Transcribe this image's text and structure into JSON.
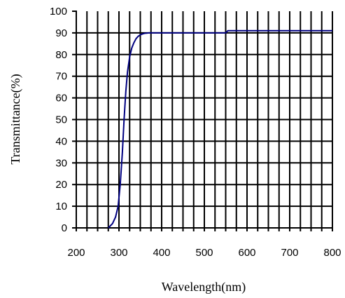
{
  "chart_data": {
    "type": "line",
    "title": "",
    "xlabel": "Wavelength(nm)",
    "ylabel": "Transmittance(%)",
    "xlim": [
      200,
      800
    ],
    "ylim": [
      0,
      100
    ],
    "xticks": [
      "200",
      "300",
      "400",
      "500",
      "600",
      "700",
      "800"
    ],
    "yticks": [
      "0",
      "10",
      "20",
      "30",
      "40",
      "50",
      "60",
      "70",
      "80",
      "90",
      "100"
    ],
    "grid": true,
    "legend": "none",
    "series": [
      {
        "color": "#000080",
        "x": [
          275,
          285,
          292,
          298,
          303,
          308,
          312,
          316,
          320,
          325,
          330,
          335,
          340,
          345,
          350,
          355,
          360,
          365,
          370,
          380,
          400,
          450,
          500,
          550,
          555,
          600,
          700,
          800
        ],
        "y": [
          0,
          2,
          5,
          10,
          20,
          35,
          50,
          63,
          72,
          79,
          83,
          85.5,
          87.3,
          88.4,
          89.1,
          89.5,
          89.8,
          89.9,
          90,
          90,
          90,
          90,
          90,
          90,
          91,
          91,
          91,
          91
        ]
      }
    ]
  }
}
